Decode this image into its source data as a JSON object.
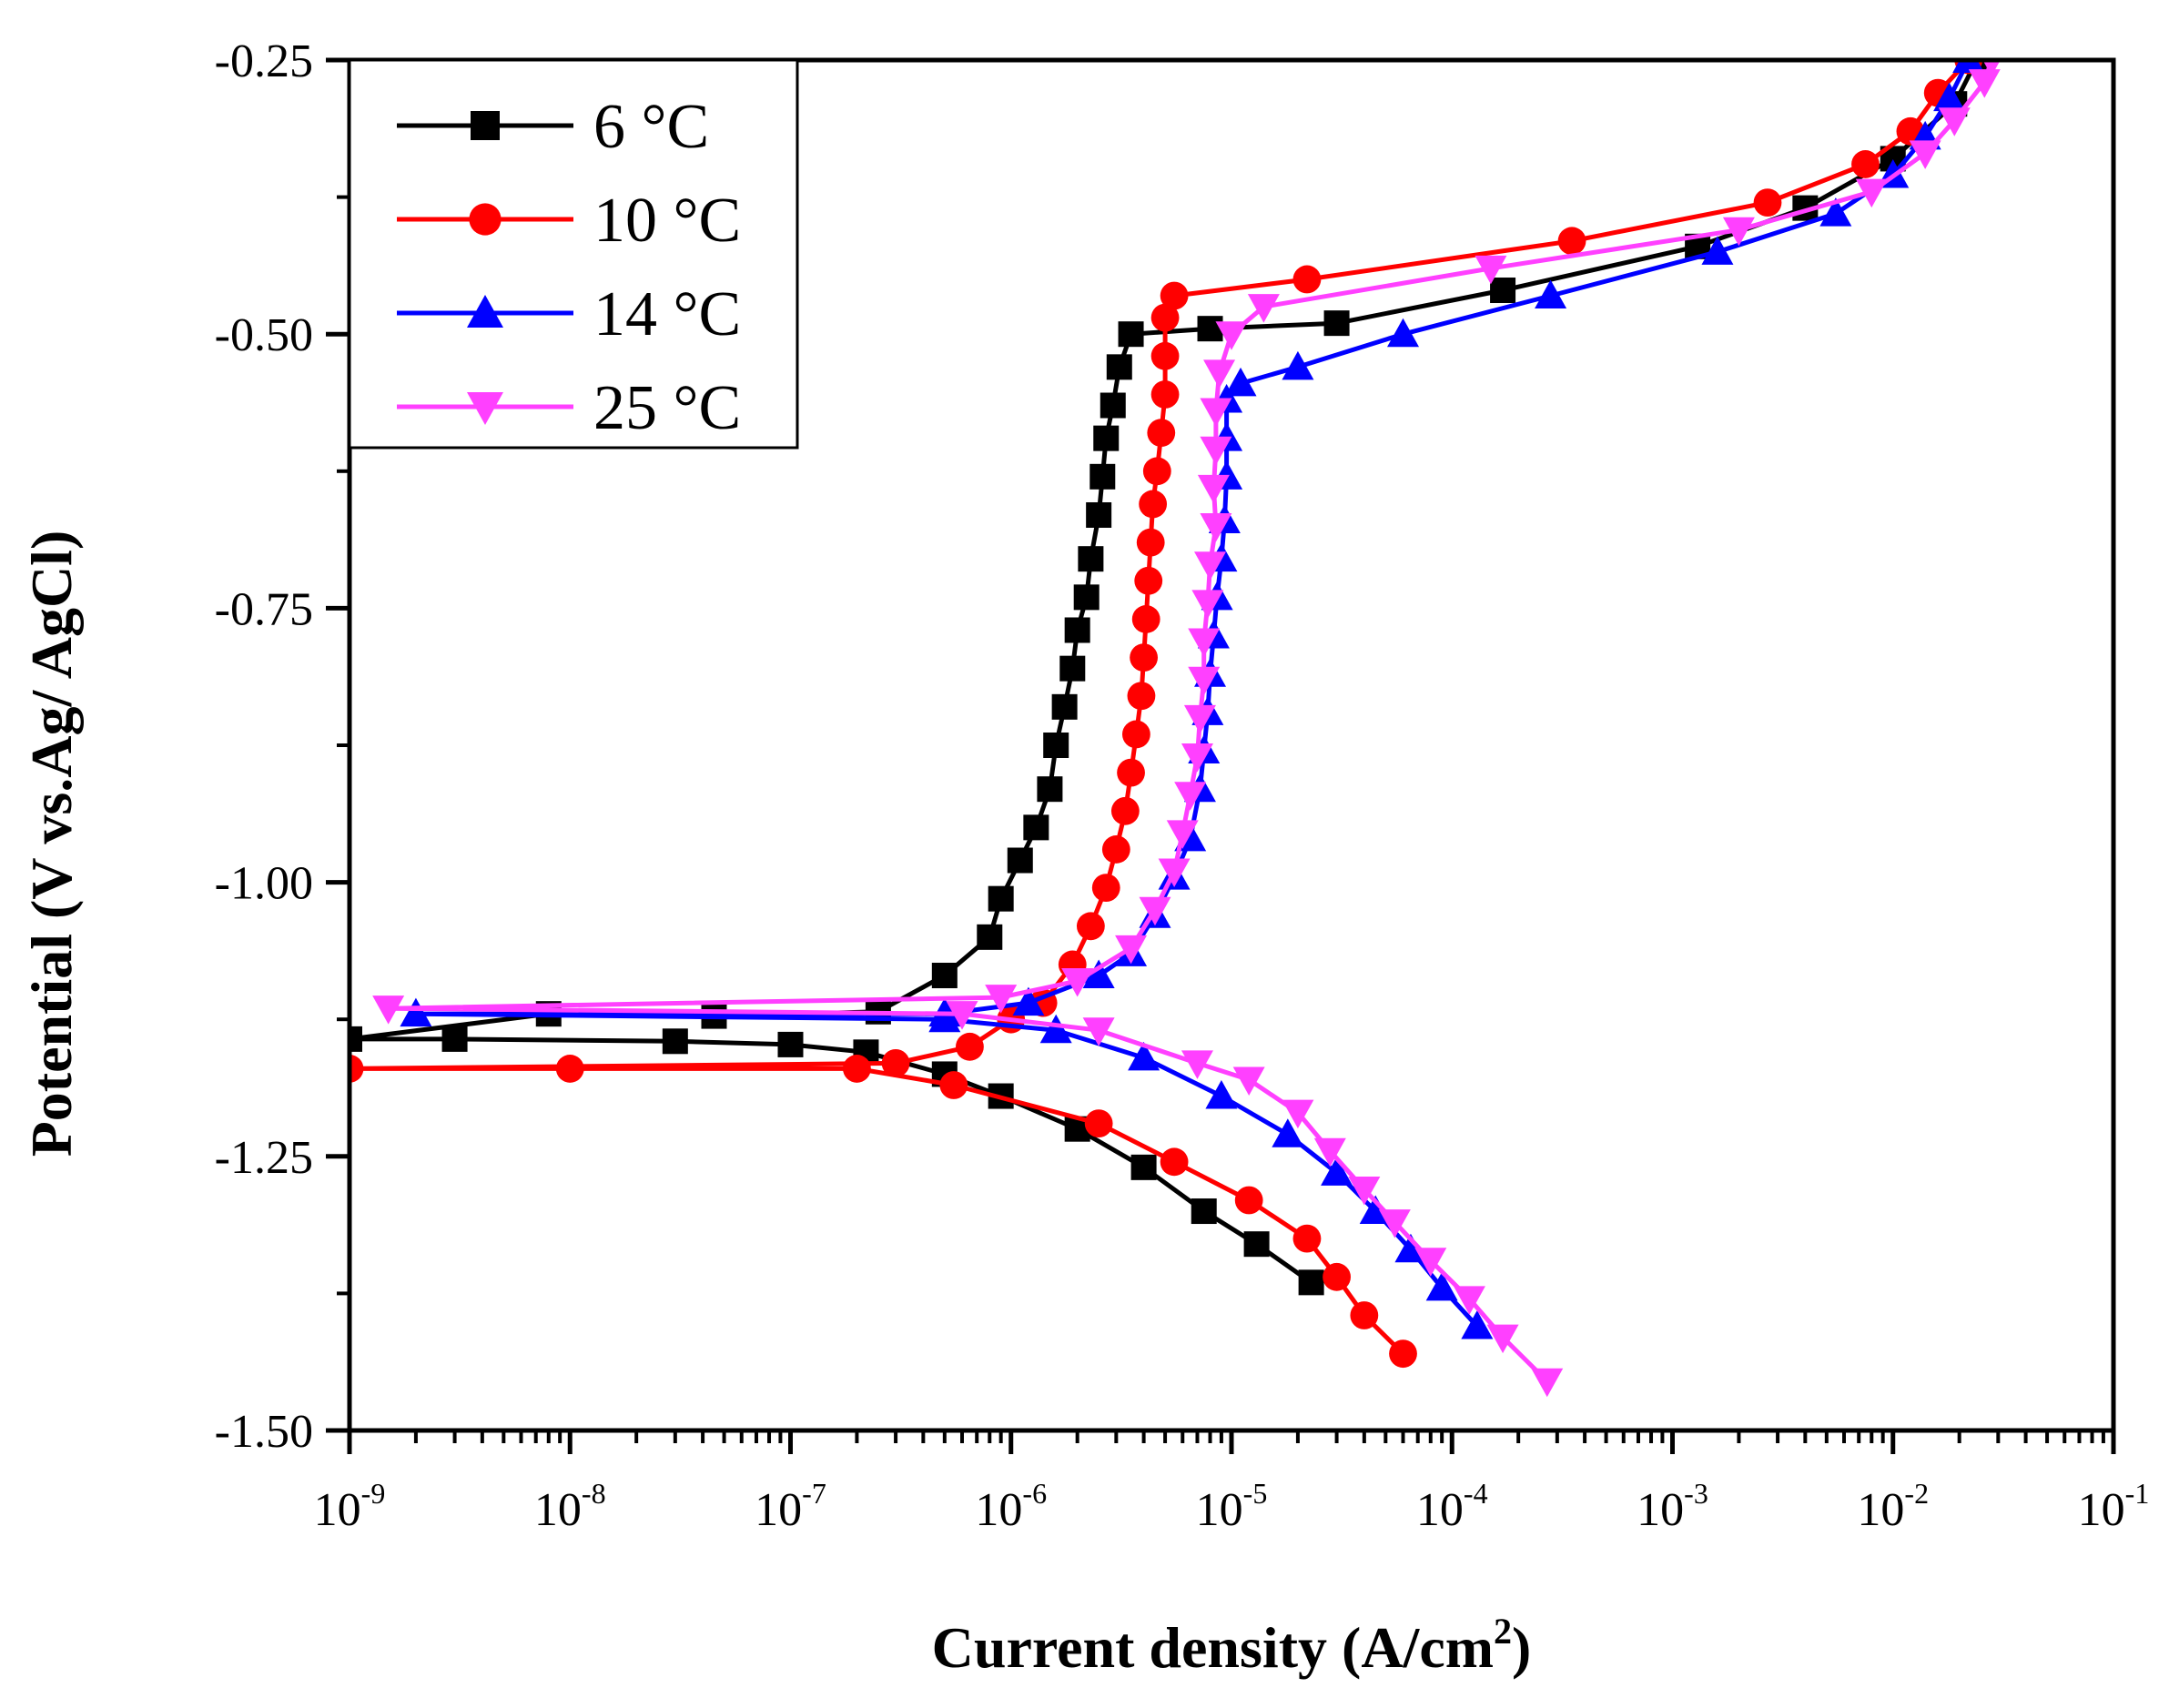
{
  "chart_data": {
    "type": "line",
    "xscale": "log",
    "xlabel": "Current density (A/cm",
    "xlabel_sup": "2",
    "xlabel_end": ")",
    "ylabel": "Potential (V vs.Ag/ AgCl)",
    "xlim": [
      1e-09,
      0.1
    ],
    "ylim": [
      -1.5,
      -0.25
    ],
    "x_ticks": [
      {
        "value": 1e-09,
        "base": "10",
        "exp": "-9"
      },
      {
        "value": 1e-08,
        "base": "10",
        "exp": "-8"
      },
      {
        "value": 1e-07,
        "base": "10",
        "exp": "-7"
      },
      {
        "value": 1e-06,
        "base": "10",
        "exp": "-6"
      },
      {
        "value": 1e-05,
        "base": "10",
        "exp": "-5"
      },
      {
        "value": 0.0001,
        "base": "10",
        "exp": "-4"
      },
      {
        "value": 0.001,
        "base": "10",
        "exp": "-3"
      },
      {
        "value": 0.01,
        "base": "10",
        "exp": "-2"
      },
      {
        "value": 0.1,
        "base": "10",
        "exp": "-1"
      }
    ],
    "y_ticks": [
      {
        "value": -0.25,
        "label": "-0.25"
      },
      {
        "value": -0.5,
        "label": "-0.50"
      },
      {
        "value": -0.75,
        "label": "-0.75"
      },
      {
        "value": -1.0,
        "label": "-1.00"
      },
      {
        "value": -1.25,
        "label": "-1.25"
      },
      {
        "value": -1.5,
        "label": "-1.50"
      }
    ],
    "legend_position": "top-left",
    "series": [
      {
        "name": "6 °C",
        "color": "#000000",
        "marker": "square",
        "points": [
          [
            2.3e-05,
            -1.365
          ],
          [
            1.3e-05,
            -1.33
          ],
          [
            7.5e-06,
            -1.3
          ],
          [
            4e-06,
            -1.26
          ],
          [
            2e-06,
            -1.225
          ],
          [
            9e-07,
            -1.195
          ],
          [
            5e-07,
            -1.175
          ],
          [
            2.2e-07,
            -1.155
          ],
          [
            1e-07,
            -1.148
          ],
          [
            3e-08,
            -1.145
          ],
          [
            3e-09,
            -1.143
          ],
          [
            1e-09,
            -1.143
          ],
          [
            8e-09,
            -1.12
          ],
          [
            4.5e-08,
            -1.122
          ],
          [
            2.5e-07,
            -1.118
          ],
          [
            5e-07,
            -1.085
          ],
          [
            8e-07,
            -1.05
          ],
          [
            9e-07,
            -1.015
          ],
          [
            1.1e-06,
            -0.98
          ],
          [
            1.3e-06,
            -0.95
          ],
          [
            1.5e-06,
            -0.915
          ],
          [
            1.6e-06,
            -0.875
          ],
          [
            1.75e-06,
            -0.84
          ],
          [
            1.9e-06,
            -0.805
          ],
          [
            2e-06,
            -0.77
          ],
          [
            2.2e-06,
            -0.74
          ],
          [
            2.3e-06,
            -0.705
          ],
          [
            2.5e-06,
            -0.665
          ],
          [
            2.6e-06,
            -0.63
          ],
          [
            2.7e-06,
            -0.595
          ],
          [
            2.9e-06,
            -0.565
          ],
          [
            3.1e-06,
            -0.53
          ],
          [
            3.5e-06,
            -0.5
          ],
          [
            8e-06,
            -0.495
          ],
          [
            3e-05,
            -0.49
          ],
          [
            0.00017,
            -0.46
          ],
          [
            0.0013,
            -0.42
          ],
          [
            0.004,
            -0.385
          ],
          [
            0.01,
            -0.34
          ],
          [
            0.019,
            -0.29
          ],
          [
            0.024,
            -0.25
          ]
        ]
      },
      {
        "name": "10 °C",
        "color": "#ff0000",
        "marker": "circle",
        "points": [
          [
            6e-05,
            -1.43
          ],
          [
            4e-05,
            -1.395
          ],
          [
            3e-05,
            -1.36
          ],
          [
            2.2e-05,
            -1.325
          ],
          [
            1.2e-05,
            -1.29
          ],
          [
            5.5e-06,
            -1.255
          ],
          [
            2.5e-06,
            -1.22
          ],
          [
            5.5e-07,
            -1.185
          ],
          [
            2e-07,
            -1.17
          ],
          [
            1e-08,
            -1.17
          ],
          [
            1e-09,
            -1.17
          ],
          [
            3e-07,
            -1.165
          ],
          [
            6.5e-07,
            -1.15
          ],
          [
            1e-06,
            -1.125
          ],
          [
            1.4e-06,
            -1.11
          ],
          [
            1.9e-06,
            -1.075
          ],
          [
            2.3e-06,
            -1.04
          ],
          [
            2.7e-06,
            -1.005
          ],
          [
            3e-06,
            -0.97
          ],
          [
            3.3e-06,
            -0.935
          ],
          [
            3.5e-06,
            -0.9
          ],
          [
            3.7e-06,
            -0.865
          ],
          [
            3.9e-06,
            -0.83
          ],
          [
            4e-06,
            -0.795
          ],
          [
            4.1e-06,
            -0.76
          ],
          [
            4.2e-06,
            -0.725
          ],
          [
            4.3e-06,
            -0.69
          ],
          [
            4.4e-06,
            -0.655
          ],
          [
            4.6e-06,
            -0.625
          ],
          [
            4.8e-06,
            -0.59
          ],
          [
            5e-06,
            -0.555
          ],
          [
            5e-06,
            -0.52
          ],
          [
            5e-06,
            -0.485
          ],
          [
            5.5e-06,
            -0.465
          ],
          [
            2.2e-05,
            -0.45
          ],
          [
            0.00035,
            -0.415
          ],
          [
            0.0027,
            -0.38
          ],
          [
            0.0075,
            -0.345
          ],
          [
            0.012,
            -0.315
          ],
          [
            0.016,
            -0.28
          ],
          [
            0.022,
            -0.25
          ]
        ]
      },
      {
        "name": "14 °C",
        "color": "#0000ff",
        "marker": "triangle-up",
        "points": [
          [
            0.00013,
            -1.405
          ],
          [
            9e-05,
            -1.37
          ],
          [
            6.5e-05,
            -1.335
          ],
          [
            4.5e-05,
            -1.3
          ],
          [
            3e-05,
            -1.265
          ],
          [
            1.8e-05,
            -1.23
          ],
          [
            9e-06,
            -1.195
          ],
          [
            4e-06,
            -1.16
          ],
          [
            1.6e-06,
            -1.135
          ],
          [
            5e-07,
            -1.125
          ],
          [
            2e-09,
            -1.12
          ],
          [
            5e-07,
            -1.12
          ],
          [
            1.2e-06,
            -1.11
          ],
          [
            2.5e-06,
            -1.085
          ],
          [
            3.5e-06,
            -1.065
          ],
          [
            4.5e-06,
            -1.03
          ],
          [
            5.5e-06,
            -0.995
          ],
          [
            6.5e-06,
            -0.96
          ],
          [
            7.2e-06,
            -0.915
          ],
          [
            7.5e-06,
            -0.88
          ],
          [
            7.8e-06,
            -0.845
          ],
          [
            8e-06,
            -0.81
          ],
          [
            8.3e-06,
            -0.775
          ],
          [
            8.6e-06,
            -0.74
          ],
          [
            9e-06,
            -0.705
          ],
          [
            9.3e-06,
            -0.67
          ],
          [
            9.5e-06,
            -0.63
          ],
          [
            9.5e-06,
            -0.595
          ],
          [
            9.5e-06,
            -0.56
          ],
          [
            1.1e-05,
            -0.545
          ],
          [
            2e-05,
            -0.53
          ],
          [
            6e-05,
            -0.5
          ],
          [
            0.00028,
            -0.465
          ],
          [
            0.0016,
            -0.425
          ],
          [
            0.0055,
            -0.39
          ],
          [
            0.01,
            -0.355
          ],
          [
            0.014,
            -0.32
          ],
          [
            0.018,
            -0.285
          ],
          [
            0.022,
            -0.25
          ]
        ]
      },
      {
        "name": "25 °C",
        "color": "#ff40ff",
        "marker": "triangle-down",
        "points": [
          [
            0.00027,
            -1.455
          ],
          [
            0.00017,
            -1.415
          ],
          [
            0.00012,
            -1.38
          ],
          [
            8e-05,
            -1.345
          ],
          [
            5.5e-05,
            -1.31
          ],
          [
            4e-05,
            -1.28
          ],
          [
            2.8e-05,
            -1.245
          ],
          [
            2e-05,
            -1.21
          ],
          [
            1.2e-05,
            -1.18
          ],
          [
            7e-06,
            -1.165
          ],
          [
            2.5e-06,
            -1.135
          ],
          [
            6e-07,
            -1.12
          ],
          [
            1.5e-09,
            -1.115
          ],
          [
            9e-07,
            -1.105
          ],
          [
            2e-06,
            -1.09
          ],
          [
            3.5e-06,
            -1.06
          ],
          [
            4.5e-06,
            -1.025
          ],
          [
            5.5e-06,
            -0.99
          ],
          [
            6e-06,
            -0.955
          ],
          [
            6.5e-06,
            -0.92
          ],
          [
            7e-06,
            -0.885
          ],
          [
            7.2e-06,
            -0.85
          ],
          [
            7.5e-06,
            -0.815
          ],
          [
            7.5e-06,
            -0.78
          ],
          [
            7.8e-06,
            -0.745
          ],
          [
            8e-06,
            -0.71
          ],
          [
            8.5e-06,
            -0.675
          ],
          [
            8.3e-06,
            -0.64
          ],
          [
            8.5e-06,
            -0.605
          ],
          [
            8.5e-06,
            -0.57
          ],
          [
            8.8e-06,
            -0.535
          ],
          [
            1e-05,
            -0.5
          ],
          [
            1.4e-05,
            -0.475
          ],
          [
            0.00015,
            -0.44
          ],
          [
            0.002,
            -0.405
          ],
          [
            0.008,
            -0.37
          ],
          [
            0.014,
            -0.335
          ],
          [
            0.019,
            -0.305
          ],
          [
            0.026,
            -0.27
          ],
          [
            0.028,
            -0.25
          ]
        ]
      }
    ]
  }
}
